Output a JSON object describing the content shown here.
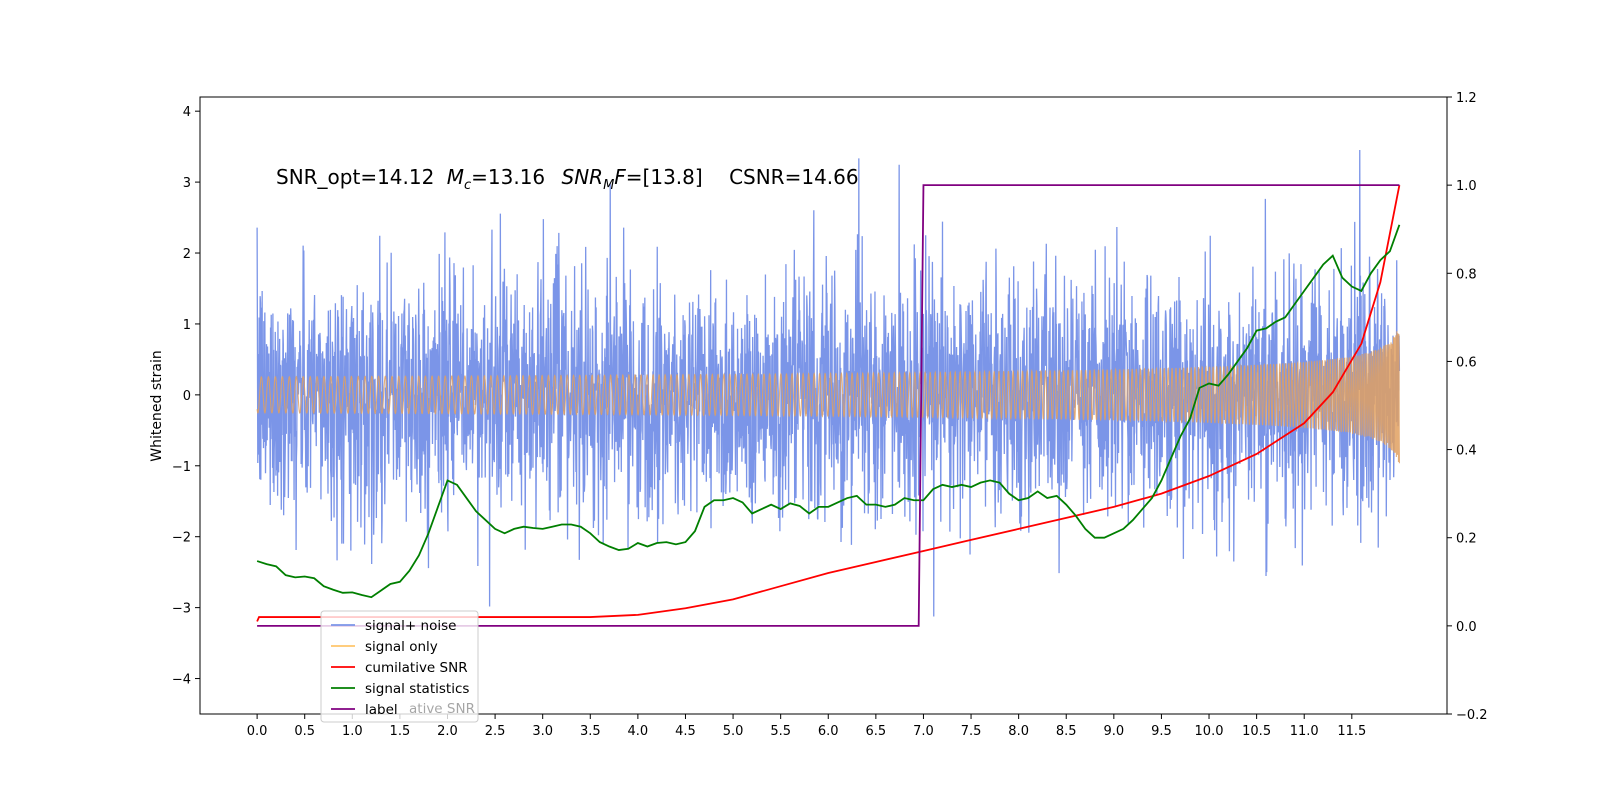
{
  "chart_data": {
    "type": "line",
    "title": "",
    "xlabel": "",
    "ylabel": "Whitened strain",
    "xlim": [
      -0.6,
      12.5
    ],
    "ylim_left": [
      -4.5,
      4.2
    ],
    "ylim_right": [
      -0.2,
      1.2
    ],
    "x_ticks": [
      0.0,
      0.5,
      1.0,
      1.5,
      2.0,
      2.5,
      3.0,
      3.5,
      4.0,
      4.5,
      5.0,
      5.5,
      6.0,
      6.5,
      7.0,
      7.5,
      8.0,
      8.5,
      9.0,
      9.5,
      10.0,
      10.5,
      11.0,
      11.5
    ],
    "x_tick_labels": [
      "0.0",
      "0.5",
      "1.0",
      "1.5",
      "2.0",
      "2.5",
      "3.0",
      "3.5",
      "4.0",
      "4.5",
      "5.0",
      "5.5",
      "6.0",
      "6.5",
      "7.0",
      "7.5",
      "8.0",
      "8.5",
      "9.0",
      "9.5",
      "10.0",
      "10.5",
      "11.0",
      "11.5"
    ],
    "y_ticks_left": [
      4,
      3,
      2,
      1,
      0,
      -1,
      -2,
      -3,
      -4
    ],
    "y_tick_labels_left": [
      "4",
      "3",
      "2",
      "1",
      "0",
      "−1",
      "−2",
      "−3",
      "−4"
    ],
    "y_ticks_right": [
      1.2,
      1.0,
      0.8,
      0.6,
      0.4,
      0.2,
      0.0,
      -0.2
    ],
    "y_tick_labels_right": [
      "1.2",
      "1.0",
      "0.8",
      "0.6",
      "0.4",
      "0.2",
      "0.0",
      "−0.2"
    ],
    "annotation": {
      "snr_opt": "SNR_opt=14.12",
      "mc_symbol": "M",
      "mc_sub": "c",
      "mc_value": "=13.16",
      "snr_mf_symbol": "SNR",
      "snr_mf_sub": "M",
      "snr_mf_f": "F",
      "snr_mf_value": "=[13.8]",
      "csnr": "CSNR=14.66"
    },
    "legend_position": "lower-left",
    "legend": [
      {
        "label": "signal+ noise",
        "color": "#7b95e8"
      },
      {
        "label": "signal only",
        "color": "#ffc66b"
      },
      {
        "label": "cumilative SNR",
        "color": "#ff0000"
      },
      {
        "label": "signal statistics",
        "color": "#007f00"
      },
      {
        "label": "label",
        "color": "#800080"
      }
    ],
    "legend_ghost_text": "ative SNR",
    "series": [
      {
        "name": "signal+ noise",
        "axis": "left",
        "kind": "noise",
        "x_range": [
          0.0,
          12.0
        ],
        "sigma": 0.85,
        "color": "#7b95e8"
      },
      {
        "name": "signal only",
        "axis": "left",
        "kind": "chirp",
        "x_range": [
          0.0,
          12.0
        ],
        "final_amplitude": 1.0,
        "color": "#e0a060"
      },
      {
        "name": "cumilative SNR",
        "axis": "right",
        "color": "#ff0000",
        "x": [
          0.0,
          0.02,
          3.5,
          4.0,
          4.5,
          5.0,
          5.5,
          6.0,
          6.5,
          7.0,
          7.5,
          8.0,
          8.5,
          9.0,
          9.5,
          10.0,
          10.5,
          11.0,
          11.3,
          11.6,
          11.8,
          12.0
        ],
        "y": [
          0.01,
          0.02,
          0.02,
          0.025,
          0.04,
          0.06,
          0.09,
          0.12,
          0.145,
          0.17,
          0.195,
          0.22,
          0.245,
          0.27,
          0.3,
          0.34,
          0.39,
          0.46,
          0.53,
          0.64,
          0.78,
          1.0
        ]
      },
      {
        "name": "signal statistics",
        "axis": "right",
        "color": "#007f00",
        "x": [
          0.0,
          0.1,
          0.2,
          0.3,
          0.4,
          0.5,
          0.6,
          0.7,
          0.8,
          0.9,
          1.0,
          1.1,
          1.2,
          1.3,
          1.4,
          1.5,
          1.6,
          1.7,
          1.8,
          1.9,
          2.0,
          2.1,
          2.2,
          2.3,
          2.4,
          2.5,
          2.6,
          2.7,
          2.8,
          2.9,
          3.0,
          3.1,
          3.2,
          3.3,
          3.4,
          3.5,
          3.6,
          3.7,
          3.8,
          3.9,
          4.0,
          4.1,
          4.2,
          4.3,
          4.4,
          4.5,
          4.6,
          4.7,
          4.8,
          4.9,
          5.0,
          5.1,
          5.2,
          5.3,
          5.4,
          5.5,
          5.6,
          5.7,
          5.8,
          5.9,
          6.0,
          6.1,
          6.2,
          6.3,
          6.4,
          6.5,
          6.6,
          6.7,
          6.8,
          6.9,
          7.0,
          7.1,
          7.2,
          7.3,
          7.4,
          7.5,
          7.6,
          7.7,
          7.8,
          7.9,
          8.0,
          8.1,
          8.2,
          8.3,
          8.4,
          8.5,
          8.6,
          8.7,
          8.8,
          8.9,
          9.0,
          9.1,
          9.2,
          9.3,
          9.4,
          9.5,
          9.6,
          9.7,
          9.8,
          9.9,
          10.0,
          10.1,
          10.2,
          10.3,
          10.4,
          10.5,
          10.6,
          10.7,
          10.8,
          10.9,
          11.0,
          11.1,
          11.2,
          11.3,
          11.4,
          11.5,
          11.6,
          11.7,
          11.8,
          11.9,
          12.0
        ],
        "y": [
          0.147,
          0.14,
          0.135,
          0.115,
          0.11,
          0.112,
          0.108,
          0.09,
          0.082,
          0.075,
          0.076,
          0.07,
          0.065,
          0.08,
          0.095,
          0.1,
          0.125,
          0.16,
          0.21,
          0.27,
          0.33,
          0.32,
          0.29,
          0.26,
          0.24,
          0.22,
          0.21,
          0.22,
          0.225,
          0.222,
          0.22,
          0.225,
          0.23,
          0.23,
          0.225,
          0.21,
          0.19,
          0.18,
          0.172,
          0.175,
          0.188,
          0.18,
          0.188,
          0.19,
          0.185,
          0.19,
          0.215,
          0.27,
          0.285,
          0.285,
          0.29,
          0.28,
          0.255,
          0.265,
          0.275,
          0.265,
          0.278,
          0.272,
          0.255,
          0.27,
          0.27,
          0.28,
          0.29,
          0.295,
          0.275,
          0.275,
          0.27,
          0.275,
          0.29,
          0.285,
          0.285,
          0.31,
          0.32,
          0.315,
          0.32,
          0.315,
          0.325,
          0.33,
          0.325,
          0.3,
          0.285,
          0.29,
          0.305,
          0.29,
          0.295,
          0.275,
          0.25,
          0.22,
          0.2,
          0.2,
          0.21,
          0.22,
          0.24,
          0.265,
          0.29,
          0.33,
          0.38,
          0.43,
          0.47,
          0.54,
          0.55,
          0.545,
          0.57,
          0.6,
          0.63,
          0.67,
          0.675,
          0.69,
          0.7,
          0.73,
          0.76,
          0.79,
          0.82,
          0.84,
          0.79,
          0.77,
          0.76,
          0.8,
          0.83,
          0.85,
          0.91
        ]
      },
      {
        "name": "label",
        "axis": "right",
        "color": "#800080",
        "x": [
          0.0,
          6.95,
          7.0,
          12.0
        ],
        "y": [
          0.0,
          0.0,
          1.0,
          1.0
        ]
      }
    ]
  }
}
